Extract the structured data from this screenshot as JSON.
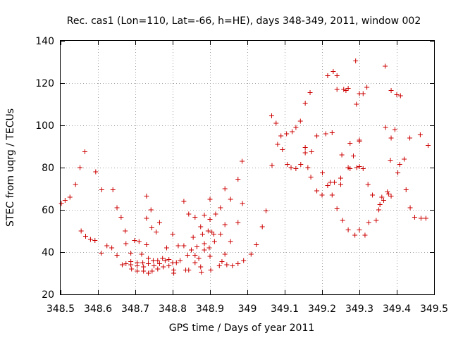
{
  "chart_data": {
    "type": "scatter",
    "title": "Rec. cas1 (Lon=110, Lat=-66, h=HE), days 348-349, 2011, window 002",
    "xlabel": "GPS time / Days of year 2011",
    "ylabel": "STEC from uqrg / TECUs",
    "xlim": [
      348.5,
      349.5
    ],
    "ylim": [
      20,
      140
    ],
    "x_ticks": [
      348.5,
      348.6,
      348.7,
      348.8,
      348.9,
      349.0,
      349.1,
      349.2,
      349.3,
      349.4,
      349.5
    ],
    "x_tick_labels": [
      "348.5",
      "348.6",
      "348.7",
      "348.8",
      "348.9",
      "349",
      "349.1",
      "349.2",
      "349.3",
      "349.4",
      "349.5"
    ],
    "y_ticks": [
      20,
      40,
      60,
      80,
      100,
      120,
      140
    ],
    "y_tick_labels": [
      "20",
      "40",
      "60",
      "80",
      "100",
      "120",
      "140"
    ],
    "grid": true,
    "marker": "+",
    "color": "#cc0000",
    "series": [
      {
        "name": "STEC",
        "points": [
          [
            348.502,
            63
          ],
          [
            348.512,
            64.5
          ],
          [
            348.525,
            66
          ],
          [
            348.54,
            72
          ],
          [
            348.552,
            80
          ],
          [
            348.565,
            87.5
          ],
          [
            348.555,
            50
          ],
          [
            348.567,
            47.5
          ],
          [
            348.58,
            46
          ],
          [
            348.592,
            45.5
          ],
          [
            348.594,
            78
          ],
          [
            348.61,
            69.5
          ],
          [
            348.609,
            39.5
          ],
          [
            348.624,
            43
          ],
          [
            348.637,
            42
          ],
          [
            348.64,
            69.5
          ],
          [
            348.651,
            61
          ],
          [
            348.651,
            38.5
          ],
          [
            348.662,
            56.5
          ],
          [
            348.665,
            34
          ],
          [
            348.673,
            50
          ],
          [
            348.675,
            34.5
          ],
          [
            348.675,
            44
          ],
          [
            348.688,
            39.5
          ],
          [
            348.688,
            35.5
          ],
          [
            348.688,
            34
          ],
          [
            348.69,
            32
          ],
          [
            348.698,
            45.5
          ],
          [
            348.705,
            31
          ],
          [
            348.705,
            33.5
          ],
          [
            348.705,
            35
          ],
          [
            348.71,
            45
          ],
          [
            348.717,
            39
          ],
          [
            348.72,
            35
          ],
          [
            348.722,
            33
          ],
          [
            348.722,
            31
          ],
          [
            348.73,
            66.5
          ],
          [
            348.73,
            56
          ],
          [
            348.73,
            43.5
          ],
          [
            348.735,
            37
          ],
          [
            348.735,
            34.5
          ],
          [
            348.735,
            30
          ],
          [
            348.742,
            60
          ],
          [
            348.744,
            51.5
          ],
          [
            348.745,
            31
          ],
          [
            348.748,
            36
          ],
          [
            348.75,
            33.5
          ],
          [
            348.756,
            49.5
          ],
          [
            348.76,
            36
          ],
          [
            348.76,
            32
          ],
          [
            348.765,
            54
          ],
          [
            348.765,
            34.5
          ],
          [
            348.773,
            37
          ],
          [
            348.775,
            33
          ],
          [
            348.78,
            36
          ],
          [
            348.784,
            42
          ],
          [
            348.79,
            33.5
          ],
          [
            348.79,
            36.5
          ],
          [
            348.8,
            35
          ],
          [
            348.8,
            48.5
          ],
          [
            348.803,
            30
          ],
          [
            348.803,
            31.5
          ],
          [
            348.81,
            35
          ],
          [
            348.815,
            43
          ],
          [
            348.82,
            36
          ],
          [
            348.83,
            64
          ],
          [
            348.83,
            43
          ],
          [
            348.835,
            31.5
          ],
          [
            348.84,
            38.5
          ],
          [
            348.843,
            58
          ],
          [
            348.843,
            31.5
          ],
          [
            348.85,
            41
          ],
          [
            348.855,
            47
          ],
          [
            348.86,
            56.5
          ],
          [
            348.86,
            38.5
          ],
          [
            348.86,
            35
          ],
          [
            348.865,
            42.5
          ],
          [
            348.87,
            37
          ],
          [
            348.875,
            52
          ],
          [
            348.875,
            33
          ],
          [
            348.877,
            30.5
          ],
          [
            348.88,
            48.5
          ],
          [
            348.885,
            44
          ],
          [
            348.885,
            41
          ],
          [
            348.885,
            57.5
          ],
          [
            348.895,
            50
          ],
          [
            348.898,
            42
          ],
          [
            348.9,
            38
          ],
          [
            348.9,
            65
          ],
          [
            348.9,
            55.5
          ],
          [
            348.902,
            31.5
          ],
          [
            348.905,
            49.5
          ],
          [
            348.91,
            48.5
          ],
          [
            348.912,
            45
          ],
          [
            348.915,
            58
          ],
          [
            348.925,
            33.5
          ],
          [
            348.928,
            61
          ],
          [
            348.928,
            48.5
          ],
          [
            348.932,
            35.5
          ],
          [
            348.94,
            70
          ],
          [
            348.94,
            53
          ],
          [
            348.94,
            39
          ],
          [
            348.945,
            34
          ],
          [
            348.955,
            65
          ],
          [
            348.955,
            45
          ],
          [
            348.96,
            33.5
          ],
          [
            348.975,
            74.5
          ],
          [
            348.975,
            54
          ],
          [
            348.975,
            34.5
          ],
          [
            348.986,
            83
          ],
          [
            348.987,
            63
          ],
          [
            348.99,
            36
          ],
          [
            349.01,
            39
          ],
          [
            349.024,
            43.5
          ],
          [
            349.04,
            52
          ],
          [
            349.05,
            59.5
          ],
          [
            349.065,
            104.5
          ],
          [
            349.066,
            81
          ],
          [
            349.077,
            101
          ],
          [
            349.081,
            91
          ],
          [
            349.09,
            95
          ],
          [
            349.094,
            88.5
          ],
          [
            349.105,
            96
          ],
          [
            349.107,
            81.5
          ],
          [
            349.117,
            80
          ],
          [
            349.12,
            97
          ],
          [
            349.13,
            79.5
          ],
          [
            349.13,
            99
          ],
          [
            349.142,
            102
          ],
          [
            349.143,
            81.5
          ],
          [
            349.155,
            110.5
          ],
          [
            349.155,
            89.5
          ],
          [
            349.155,
            87
          ],
          [
            349.162,
            80
          ],
          [
            349.168,
            115.5
          ],
          [
            349.172,
            87.5
          ],
          [
            349.17,
            75.5
          ],
          [
            349.186,
            95
          ],
          [
            349.186,
            69
          ],
          [
            349.2,
            67
          ],
          [
            349.201,
            77.5
          ],
          [
            349.21,
            96
          ],
          [
            349.215,
            123.5
          ],
          [
            349.215,
            71.5
          ],
          [
            349.222,
            73
          ],
          [
            349.227,
            96.5
          ],
          [
            349.227,
            67
          ],
          [
            349.23,
            125.5
          ],
          [
            349.233,
            73
          ],
          [
            349.24,
            117
          ],
          [
            349.24,
            123.5
          ],
          [
            349.24,
            60.5
          ],
          [
            349.25,
            72
          ],
          [
            349.25,
            75
          ],
          [
            349.253,
            86
          ],
          [
            349.255,
            55
          ],
          [
            349.258,
            117
          ],
          [
            349.264,
            116.5
          ],
          [
            349.27,
            117.5
          ],
          [
            349.27,
            80
          ],
          [
            349.275,
            91.5
          ],
          [
            349.275,
            79.5
          ],
          [
            349.27,
            50.5
          ],
          [
            349.284,
            85.5
          ],
          [
            349.288,
            48
          ],
          [
            349.29,
            130.5
          ],
          [
            349.292,
            110
          ],
          [
            349.293,
            80
          ],
          [
            349.3,
            115
          ],
          [
            349.3,
            92.5
          ],
          [
            349.3,
            93
          ],
          [
            349.3,
            80.5
          ],
          [
            349.3,
            50.5
          ],
          [
            349.31,
            79.5
          ],
          [
            349.31,
            115
          ],
          [
            349.315,
            48
          ],
          [
            349.32,
            118
          ],
          [
            349.323,
            72
          ],
          [
            349.325,
            54
          ],
          [
            349.335,
            67
          ],
          [
            349.345,
            55
          ],
          [
            349.352,
            60
          ],
          [
            349.355,
            62.5
          ],
          [
            349.36,
            66
          ],
          [
            349.365,
            64.5
          ],
          [
            349.369,
            128
          ],
          [
            349.37,
            99
          ],
          [
            349.375,
            68.5
          ],
          [
            349.378,
            67.5
          ],
          [
            349.383,
            83.5
          ],
          [
            349.385,
            116.5
          ],
          [
            349.385,
            66.5
          ],
          [
            349.385,
            94
          ],
          [
            349.395,
            98
          ],
          [
            349.4,
            114.5
          ],
          [
            349.403,
            77.5
          ],
          [
            349.408,
            81.5
          ],
          [
            349.41,
            114
          ],
          [
            349.42,
            84
          ],
          [
            349.425,
            69.5
          ],
          [
            349.435,
            94
          ],
          [
            349.436,
            61
          ],
          [
            349.448,
            56.5
          ],
          [
            349.463,
            95.5
          ],
          [
            349.465,
            56
          ],
          [
            349.478,
            56
          ],
          [
            349.484,
            90.5
          ]
        ]
      }
    ]
  }
}
